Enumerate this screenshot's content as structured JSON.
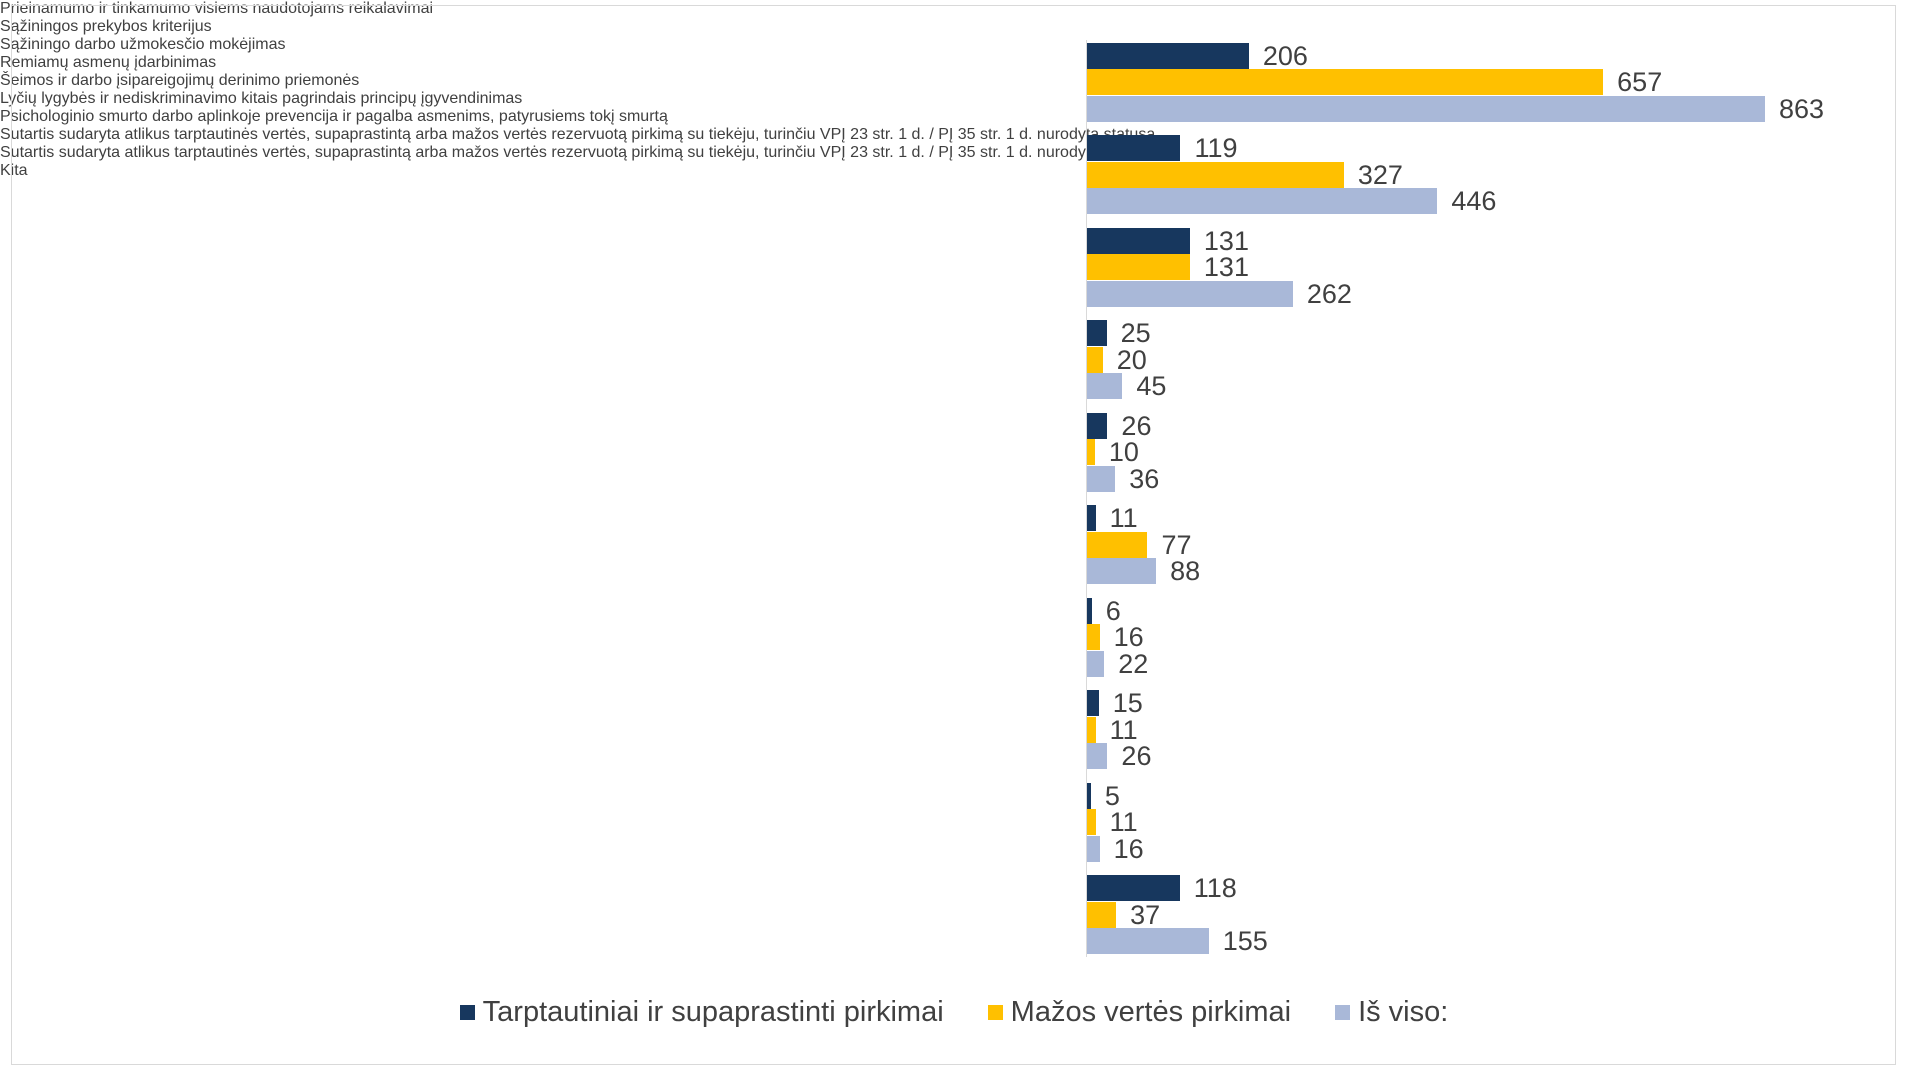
{
  "chart_data": {
    "type": "bar",
    "orientation": "horizontal",
    "categories": [
      "Prieinamumo ir tinkamumo visiems naudotojams reikalavimai",
      "Sąžiningos prekybos kriterijus",
      "Sąžiningo darbo užmokesčio mokėjimas",
      "Remiamų asmenų įdarbinimas",
      "Šeimos ir darbo įsipareigojimų derinimo priemonės",
      "Lyčių lygybės ir nediskriminavimo kitais pagrindais principų įgyvendinimas",
      "Psichologinio smurto darbo aplinkoje prevencija ir pagalba asmenims, patyrusiems tokį smurtą",
      "Sutartis sudaryta atlikus tarptautinės vertės, supaprastintą arba mažos vertės rezervuotą pirkimą su tiekėju, turinčiu VPĮ 23 str. 1 d. / PĮ 35 str. 1 d. nurodytą statusą",
      "Sutartis sudaryta atlikus tarptautinės vertės, supaprastintą arba mažos vertės rezervuotą pirkimą su tiekėju, turinčiu VPĮ 23 str. 1 d. / PĮ 35 str. 1 d. nurodytą statusą",
      "Kita"
    ],
    "series": [
      {
        "name": "Tarptautiniai ir supaprastinti pirkimai",
        "color": "#17375e",
        "values": [
          206,
          119,
          131,
          25,
          26,
          11,
          6,
          15,
          5,
          118
        ]
      },
      {
        "name": "Mažos vertės pirkimai",
        "color": "#ffc000",
        "values": [
          657,
          327,
          131,
          20,
          10,
          77,
          16,
          11,
          11,
          37
        ]
      },
      {
        "name": "Iš viso:",
        "color": "#a9b8d8",
        "values": [
          863,
          446,
          262,
          45,
          36,
          88,
          22,
          26,
          16,
          155
        ]
      }
    ],
    "legend": "bottom"
  }
}
